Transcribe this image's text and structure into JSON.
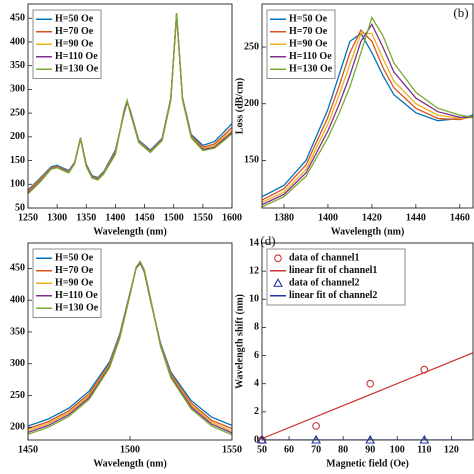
{
  "chart_data": [
    {
      "type": "line",
      "xlabel": "Wavelength (nm)",
      "x": [
        1250,
        1270,
        1290,
        1300,
        1310,
        1320,
        1330,
        1340,
        1350,
        1360,
        1370,
        1380,
        1400,
        1415,
        1420,
        1425,
        1440,
        1460,
        1480,
        1495,
        1505,
        1515,
        1530,
        1550,
        1570,
        1590,
        1600
      ],
      "xlim": [
        1250,
        1600
      ],
      "xticks": [
        1250,
        1300,
        1350,
        1400,
        1450,
        1500,
        1550,
        1600
      ],
      "ylim": [
        50,
        480
      ],
      "yticks": [
        50,
        100,
        150,
        200,
        250,
        300,
        350,
        400,
        450
      ],
      "legend": "upper left",
      "series": [
        {
          "name": "H=50 Oe",
          "color": "#0072BD",
          "values": [
            88,
            112,
            137,
            140,
            134,
            129,
            146,
            198,
            142,
            118,
            114,
            127,
            172,
            250,
            272,
            258,
            193,
            172,
            197,
            282,
            458,
            283,
            205,
            182,
            190,
            215,
            228
          ]
        },
        {
          "name": "H=70 Oe",
          "color": "#D95319",
          "values": [
            86,
            110,
            135,
            138,
            132,
            127,
            145,
            197,
            140,
            116,
            112,
            125,
            169,
            252,
            274,
            256,
            191,
            170,
            195,
            280,
            459,
            281,
            202,
            178,
            185,
            208,
            220
          ]
        },
        {
          "name": "H=90 Oe",
          "color": "#EDB120",
          "values": [
            84,
            108,
            134,
            137,
            131,
            126,
            144,
            197,
            139,
            115,
            111,
            124,
            167,
            254,
            275,
            255,
            190,
            169,
            194,
            279,
            460,
            280,
            200,
            175,
            181,
            203,
            214
          ]
        },
        {
          "name": "H=110 Oe",
          "color": "#7E2F8E",
          "values": [
            82,
            106,
            133,
            136,
            130,
            125,
            144,
            196,
            138,
            114,
            110,
            123,
            165,
            256,
            276,
            254,
            189,
            168,
            193,
            278,
            460,
            279,
            199,
            173,
            178,
            199,
            210
          ]
        },
        {
          "name": "H=130 Oe",
          "color": "#77AC30",
          "values": [
            80,
            104,
            132,
            135,
            129,
            124,
            143,
            196,
            137,
            113,
            109,
            122,
            163,
            258,
            277,
            252,
            188,
            167,
            192,
            277,
            461,
            278,
            198,
            171,
            176,
            196,
            207
          ]
        }
      ]
    },
    {
      "type": "line",
      "xlabel": "Wavelength (nm)",
      "ylabel": "Loss (dB/cm)",
      "panel_label": "(b)",
      "x": [
        1370,
        1380,
        1390,
        1400,
        1405,
        1410,
        1415,
        1420,
        1425,
        1430,
        1440,
        1450,
        1460,
        1466
      ],
      "xlim": [
        1370,
        1466
      ],
      "xticks": [
        1380,
        1400,
        1420,
        1440,
        1460
      ],
      "ylim": [
        108,
        288
      ],
      "yticks": [
        150,
        200,
        250
      ],
      "legend": "upper left",
      "series": [
        {
          "name": "H=50 Oe",
          "color": "#0072BD",
          "values": [
            118,
            128,
            150,
            195,
            225,
            255,
            262,
            245,
            225,
            208,
            192,
            185,
            187,
            190
          ]
        },
        {
          "name": "H=70 Oe",
          "color": "#D95319",
          "values": [
            115,
            125,
            146,
            188,
            215,
            245,
            265,
            255,
            232,
            214,
            196,
            187,
            186,
            189
          ]
        },
        {
          "name": "H=90 Oe",
          "color": "#EDB120",
          "values": [
            113,
            122,
            142,
            182,
            207,
            235,
            262,
            262,
            240,
            220,
            200,
            190,
            187,
            188
          ]
        },
        {
          "name": "H=110 Oe",
          "color": "#7E2F8E",
          "values": [
            111,
            120,
            139,
            176,
            199,
            225,
            255,
            270,
            250,
            228,
            205,
            193,
            188,
            188
          ]
        },
        {
          "name": "H=130 Oe",
          "color": "#77AC30",
          "values": [
            109,
            118,
            136,
            170,
            191,
            215,
            245,
            276,
            260,
            236,
            210,
            196,
            190,
            188
          ]
        }
      ]
    },
    {
      "type": "line",
      "xlabel": "Wavelength (nm)",
      "x": [
        1450,
        1460,
        1470,
        1480,
        1490,
        1495,
        1500,
        1503,
        1505,
        1507,
        1510,
        1515,
        1520,
        1530,
        1540,
        1550
      ],
      "xlim": [
        1450,
        1550
      ],
      "xticks": [
        1450,
        1500,
        1550
      ],
      "ylim": [
        180,
        490
      ],
      "yticks": [
        200,
        250,
        300,
        350,
        400,
        450
      ],
      "legend": "upper left",
      "series": [
        {
          "name": "H=50 Oe",
          "color": "#0072BD",
          "values": [
            202,
            213,
            230,
            257,
            303,
            347,
            412,
            450,
            458,
            444,
            400,
            332,
            287,
            242,
            216,
            203
          ]
        },
        {
          "name": "H=70 Oe",
          "color": "#D95319",
          "values": [
            198,
            209,
            226,
            253,
            300,
            345,
            411,
            450,
            459,
            445,
            401,
            330,
            284,
            238,
            211,
            198
          ]
        },
        {
          "name": "H=90 Oe",
          "color": "#EDB120",
          "values": [
            195,
            206,
            223,
            250,
            298,
            343,
            410,
            451,
            460,
            446,
            402,
            329,
            282,
            235,
            208,
            194
          ]
        },
        {
          "name": "H=110 Oe",
          "color": "#7E2F8E",
          "values": [
            192,
            203,
            220,
            247,
            296,
            342,
            409,
            451,
            460,
            447,
            403,
            328,
            280,
            232,
            205,
            191
          ]
        },
        {
          "name": "H=130 Oe",
          "color": "#77AC30",
          "values": [
            189,
            200,
            217,
            244,
            294,
            340,
            408,
            452,
            461,
            448,
            404,
            327,
            278,
            229,
            202,
            188
          ]
        }
      ]
    },
    {
      "type": "scatter",
      "xlabel": "Magnetic field (Oe)",
      "ylabel": "Wavelength shift (nm)",
      "panel_label": "(d)",
      "xlim": [
        50,
        128
      ],
      "xticks": [
        50,
        60,
        70,
        80,
        90,
        100,
        110,
        120
      ],
      "ylim": [
        0,
        14
      ],
      "yticks": [
        0,
        2,
        4,
        6,
        8,
        10,
        12,
        14
      ],
      "legend": "upper left",
      "series": [
        {
          "name": "data of channel1",
          "color": "#cc3333",
          "mode": "markers",
          "marker": "circle",
          "x": [
            50,
            70,
            90,
            110
          ],
          "values": [
            0,
            1,
            4,
            5
          ]
        },
        {
          "name": "linear fit of channel1",
          "color": "#cc3333",
          "mode": "line",
          "x": [
            50,
            128
          ],
          "values": [
            0.1,
            6.2
          ]
        },
        {
          "name": "data of channel2",
          "color": "#2233aa",
          "mode": "markers",
          "marker": "triangle",
          "x": [
            50,
            70,
            90,
            110
          ],
          "values": [
            0,
            0,
            0,
            0
          ]
        },
        {
          "name": "linear fit of channel2",
          "color": "#2233aa",
          "mode": "line",
          "x": [
            50,
            128
          ],
          "values": [
            0,
            0
          ]
        }
      ]
    }
  ]
}
